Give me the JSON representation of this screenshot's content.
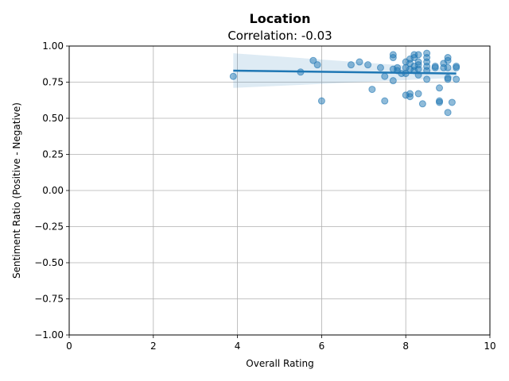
{
  "chart_data": {
    "type": "scatter",
    "title": "Location",
    "subtitle": "Correlation: -0.03",
    "xlabel": "Overall Rating",
    "ylabel": "Sentiment Ratio (Positive - Negative)",
    "xlim": [
      0,
      10
    ],
    "ylim": [
      -1.0,
      1.0
    ],
    "xticks": [
      "0",
      "2",
      "4",
      "6",
      "8",
      "10"
    ],
    "yticks": [
      "1.00",
      "0.75",
      "0.50",
      "0.25",
      "0.00",
      "−0.25",
      "−0.50",
      "−0.75",
      "−1.00"
    ],
    "grid": true,
    "colors": {
      "points": "#1f77b4",
      "fit_line": "#1f77b4",
      "confidence_band": "#1f77b4"
    },
    "points": [
      [
        3.9,
        0.79
      ],
      [
        5.5,
        0.82
      ],
      [
        5.8,
        0.9
      ],
      [
        5.9,
        0.87
      ],
      [
        6.0,
        0.62
      ],
      [
        6.7,
        0.87
      ],
      [
        6.9,
        0.89
      ],
      [
        7.1,
        0.87
      ],
      [
        7.2,
        0.7
      ],
      [
        7.4,
        0.85
      ],
      [
        7.5,
        0.79
      ],
      [
        7.5,
        0.62
      ],
      [
        7.7,
        0.94
      ],
      [
        7.7,
        0.92
      ],
      [
        7.7,
        0.84
      ],
      [
        7.7,
        0.76
      ],
      [
        7.8,
        0.85
      ],
      [
        7.8,
        0.83
      ],
      [
        7.9,
        0.81
      ],
      [
        8.0,
        0.89
      ],
      [
        8.0,
        0.85
      ],
      [
        8.0,
        0.81
      ],
      [
        8.0,
        0.66
      ],
      [
        8.1,
        0.91
      ],
      [
        8.1,
        0.88
      ],
      [
        8.1,
        0.84
      ],
      [
        8.1,
        0.67
      ],
      [
        8.1,
        0.65
      ],
      [
        8.2,
        0.94
      ],
      [
        8.2,
        0.92
      ],
      [
        8.2,
        0.86
      ],
      [
        8.2,
        0.83
      ],
      [
        8.3,
        0.94
      ],
      [
        8.3,
        0.89
      ],
      [
        8.3,
        0.87
      ],
      [
        8.3,
        0.84
      ],
      [
        8.3,
        0.8
      ],
      [
        8.3,
        0.67
      ],
      [
        8.4,
        0.6
      ],
      [
        8.5,
        0.95
      ],
      [
        8.5,
        0.92
      ],
      [
        8.5,
        0.89
      ],
      [
        8.5,
        0.86
      ],
      [
        8.5,
        0.83
      ],
      [
        8.5,
        0.77
      ],
      [
        8.7,
        0.86
      ],
      [
        8.7,
        0.85
      ],
      [
        8.8,
        0.71
      ],
      [
        8.8,
        0.62
      ],
      [
        8.8,
        0.61
      ],
      [
        8.9,
        0.88
      ],
      [
        8.9,
        0.85
      ],
      [
        9.0,
        0.92
      ],
      [
        9.0,
        0.9
      ],
      [
        9.0,
        0.85
      ],
      [
        9.0,
        0.78
      ],
      [
        9.0,
        0.77
      ],
      [
        9.0,
        0.54
      ],
      [
        9.1,
        0.61
      ],
      [
        9.2,
        0.86
      ],
      [
        9.2,
        0.85
      ],
      [
        9.2,
        0.77
      ]
    ],
    "regression": {
      "x": [
        3.9,
        9.2
      ],
      "y": [
        0.83,
        0.81
      ],
      "ci_upper": [
        0.95,
        0.84
      ],
      "ci_lower": [
        0.71,
        0.78
      ]
    }
  }
}
